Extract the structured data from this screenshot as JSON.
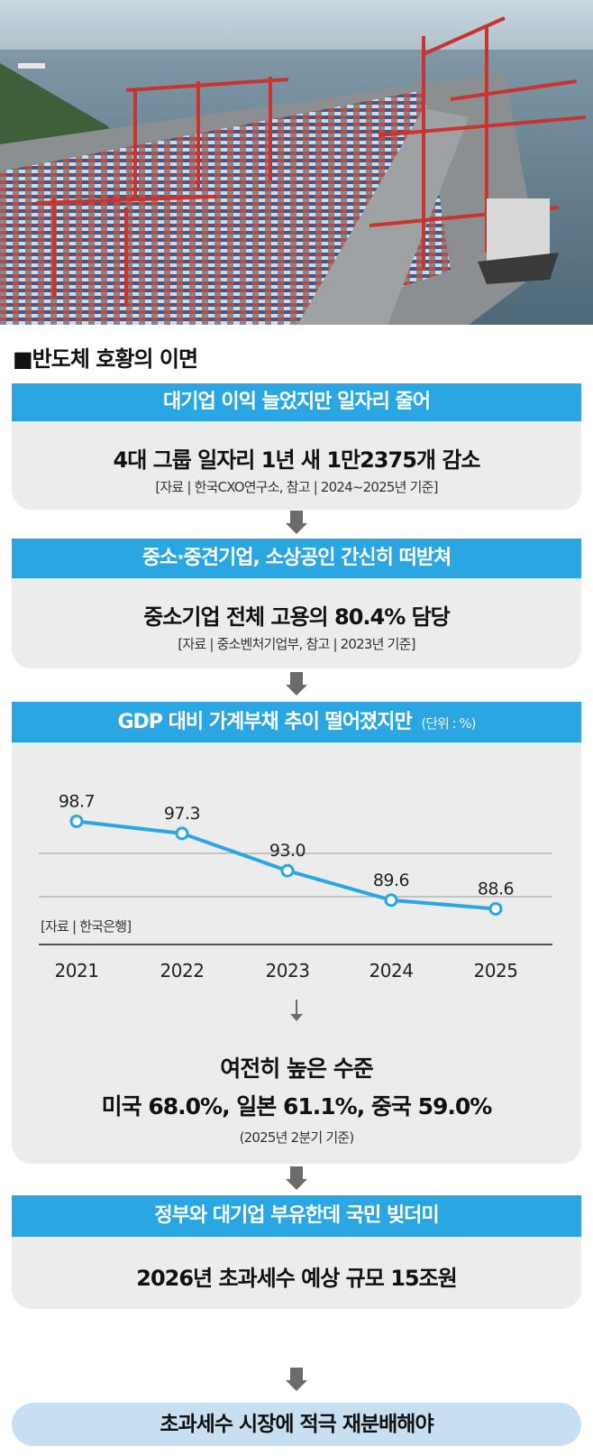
{
  "heading": "■반도체 호황의 이면",
  "section1": {
    "title": "대기업 이익 늘었지만 일자리 줄어",
    "headline": "4대 그룹 일자리 1년 새 1만2375개 감소",
    "source": "[자료 | 한국CXO연구소, 참고 | 2024~2025년 기준]"
  },
  "section2": {
    "title": "중소·중견기업, 소상공인 간신히 떠받쳐",
    "headline": "중소기업 전체 고용의 80.4% 담당",
    "source": "[자료 | 중소벤처기업부, 참고 | 2023년 기준]"
  },
  "section3": {
    "title": "GDP 대비 가계부채 추이 떨어졌지만",
    "unit": "(단위 : %)",
    "source": "[자료 | 한국은행]",
    "note_title": "여전히 높은 수준",
    "note_line": "미국 68.0%, 일본 61.1%, 중국 59.0%",
    "note_source": "(2025년 2분기 기준)"
  },
  "section4": {
    "title": "정부와 대기업 부유한데 국민 빚더미",
    "headline": "2026년 초과세수 예상 규모 15조원"
  },
  "final": "초과세수 시장에 적극 재분배해야",
  "colors": {
    "accent": "#2aa6e2",
    "panel": "#ececec",
    "arrow": "#6b6b6b",
    "final_pill": "#c8dff2"
  },
  "chart_data": {
    "type": "line",
    "title": "GDP 대비 가계부채 추이 떨어졌지만",
    "ylabel": "(단위 : %)",
    "categories": [
      "2021",
      "2022",
      "2023",
      "2024",
      "2025"
    ],
    "values": [
      98.7,
      97.3,
      93.0,
      89.6,
      88.6
    ],
    "value_labels": [
      "98.7",
      "97.3",
      "93.0",
      "89.6",
      "88.6"
    ],
    "ylim": [
      80,
      105
    ],
    "grid": true,
    "line_color": "#2aa6e2"
  }
}
